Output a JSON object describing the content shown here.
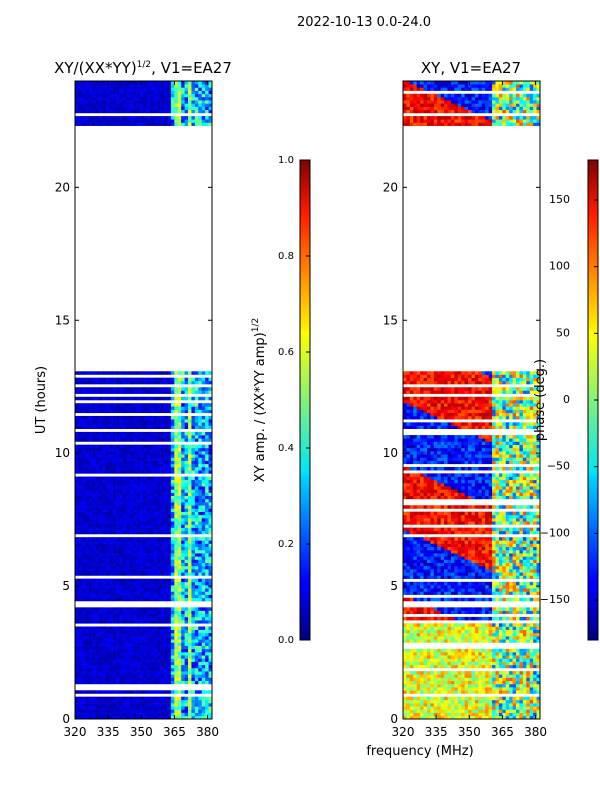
{
  "figure": {
    "suptitle": "2022-10-13 0.0-24.0"
  },
  "chart_data": [
    {
      "type": "heatmap",
      "title": "XY/(XX*YY)",
      "title_exponent": "1/2",
      "title_suffix": ", V1=EA27",
      "xlabel": "",
      "ylabel": "UT (hours)",
      "xlim": [
        320,
        382
      ],
      "ylim": [
        0,
        24
      ],
      "xticks": [
        320,
        335,
        350,
        365,
        380
      ],
      "yticks": [
        0,
        5,
        10,
        15,
        20
      ],
      "data_gap_hours": [
        13.0,
        22.3
      ],
      "colorbar": {
        "label": "XY amp. / (XX*YY amp)",
        "label_exponent": "1/2",
        "range": [
          0.0,
          1.0
        ],
        "ticks": [
          "0.0",
          "0.2",
          "0.4",
          "0.6",
          "0.8",
          "1.0"
        ],
        "colormap": "jet"
      }
    },
    {
      "type": "heatmap",
      "title": "XY, V1=EA27",
      "xlabel": "frequency (MHz)",
      "ylabel": "",
      "xlim": [
        320,
        382
      ],
      "ylim": [
        0,
        24
      ],
      "xticks": [
        320,
        335,
        350,
        365,
        380
      ],
      "yticks": [
        0,
        5,
        10,
        15,
        20
      ],
      "data_gap_hours": [
        13.0,
        22.3
      ],
      "colorbar": {
        "label": "phase (deg.)",
        "range": [
          -180,
          180
        ],
        "ticks": [
          "-150",
          "-100",
          "-50",
          "0",
          "50",
          "100",
          "150"
        ],
        "colormap": "jet"
      }
    }
  ]
}
